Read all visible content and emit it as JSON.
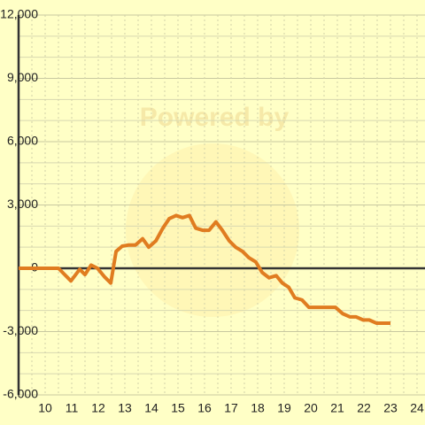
{
  "chart_data": {
    "type": "line",
    "watermark": "Powered by",
    "x": [
      9,
      10.5,
      10.97,
      11.3,
      11.5,
      11.73,
      11.97,
      12.23,
      12.47,
      12.67,
      12.9,
      13.13,
      13.4,
      13.67,
      13.9,
      14.17,
      14.43,
      14.67,
      14.93,
      15.17,
      15.43,
      15.67,
      15.93,
      16.17,
      16.43,
      16.67,
      16.93,
      17.17,
      17.43,
      17.67,
      17.93,
      18.17,
      18.43,
      18.7,
      18.93,
      19.17,
      19.4,
      19.67,
      19.93,
      20.17,
      20.43,
      20.93,
      21.2,
      21.47,
      21.7,
      21.97,
      22.2,
      22.47,
      23
    ],
    "series": [
      {
        "color": "#e07c20",
        "values": [
          0,
          0,
          -600,
          -50,
          -300,
          150,
          0,
          -400,
          -700,
          800,
          1050,
          1100,
          1100,
          1400,
          1000,
          1300,
          1900,
          2350,
          2500,
          2400,
          2500,
          1900,
          1800,
          1800,
          2200,
          1800,
          1300,
          1000,
          800,
          500,
          300,
          -200,
          -450,
          -350,
          -700,
          -900,
          -1400,
          -1500,
          -1850,
          -1850,
          -1850,
          -1850,
          -2150,
          -2300,
          -2300,
          -2450,
          -2450,
          -2600,
          -2600
        ]
      }
    ],
    "xlim": [
      9,
      24.3
    ],
    "ylim": [
      -6000,
      12000
    ],
    "xticks": [
      10,
      11,
      12,
      13,
      14,
      15,
      16,
      17,
      18,
      19,
      20,
      21,
      22,
      23,
      24
    ],
    "x_minor_ticks": [
      9.5,
      10.5,
      11.5,
      12.5,
      13.5,
      14.5,
      15.5,
      16.5,
      17.5,
      18.5,
      19.5,
      20.5,
      21.5,
      22.5,
      23.5
    ],
    "yticks": [
      {
        "value": -6000,
        "label": "-6,000"
      },
      {
        "value": -3000,
        "label": "-3,000"
      },
      0,
      {
        "value": 3000,
        "label": "3,000"
      },
      {
        "value": 6000,
        "label": "6,000"
      },
      {
        "value": 9000,
        "label": "9,000"
      },
      {
        "value": 12000,
        "label": "12,000"
      }
    ],
    "y_minor_ticks": [
      -5000,
      -4000,
      -2000,
      -1000,
      1000,
      2000,
      4000,
      5000,
      7000,
      8000,
      10000,
      11000
    ],
    "grid": true
  }
}
